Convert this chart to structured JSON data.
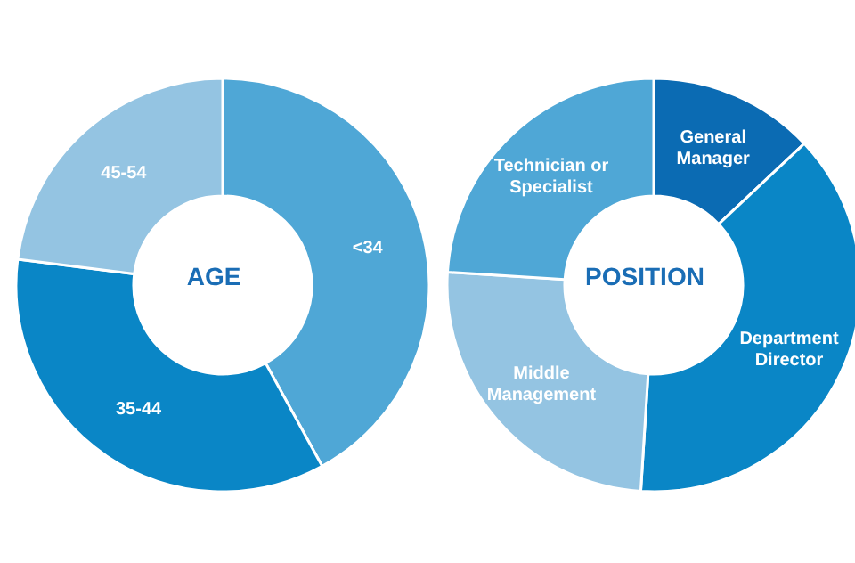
{
  "chart_data": [
    {
      "type": "donut",
      "title": "AGE",
      "categories": [
        "<34",
        "35-44",
        "45-54"
      ],
      "values": [
        42,
        35,
        23
      ],
      "colors": [
        "#4fa7d6",
        "#0a86c6",
        "#94c4e2"
      ]
    },
    {
      "type": "donut",
      "title": "POSITION",
      "categories": [
        "General Manager",
        "Department Director",
        "Middle Management",
        "Technician or Specialist"
      ],
      "values": [
        13,
        38,
        25,
        24
      ],
      "colors": [
        "#0b6bb3",
        "#0a86c6",
        "#94c4e2",
        "#4fa7d6"
      ]
    }
  ]
}
